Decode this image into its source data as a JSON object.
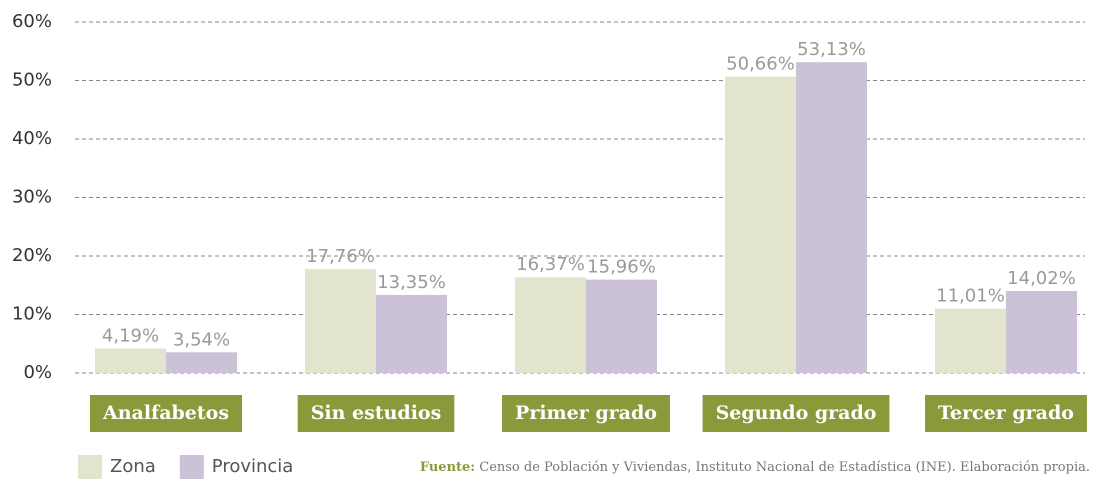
{
  "chart_data": {
    "type": "bar",
    "categories": [
      "Analfabetos",
      "Sin estudios",
      "Primer grado",
      "Segundo grado",
      "Tercer grado"
    ],
    "series": [
      {
        "name": "Zona",
        "color": "#e2e4cd",
        "values": [
          4.19,
          17.76,
          16.37,
          50.66,
          11.01
        ],
        "value_labels": [
          "4,19%",
          "17,76%",
          "16,37%",
          "50,66%",
          "11,01%"
        ]
      },
      {
        "name": "Provincia",
        "color": "#cbc2d8",
        "values": [
          3.54,
          13.35,
          15.96,
          53.13,
          14.02
        ],
        "value_labels": [
          "3,54%",
          "13,35%",
          "15,96%",
          "53,13%",
          "14,02%"
        ]
      }
    ],
    "ylim": [
      0,
      60
    ],
    "yticks": [
      {
        "value": 0,
        "label": "0%"
      },
      {
        "value": 10,
        "label": "10%"
      },
      {
        "value": 20,
        "label": "20%"
      },
      {
        "value": 30,
        "label": "30%"
      },
      {
        "value": 40,
        "label": "40%"
      },
      {
        "value": 50,
        "label": "50%"
      },
      {
        "value": 60,
        "label": "60%"
      }
    ],
    "grid": true,
    "category_color": "#8a9a3b",
    "source_label": "Fuente:",
    "source": "Censo de Población y Viviendas, Instituto Nacional de Estadística (INE). Elaboración propia."
  }
}
